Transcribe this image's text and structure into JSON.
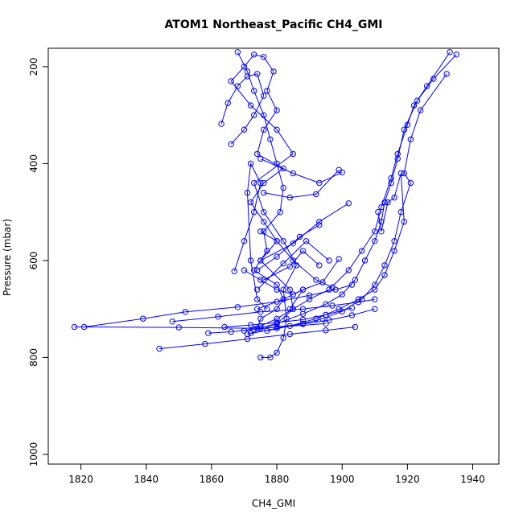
{
  "chart_data": {
    "type": "line",
    "title": "ATOM1 Northeast_Pacific CH4_GMI",
    "xlabel": "CH4_GMI",
    "ylabel": "Pressure (mbar)",
    "xlim": [
      1810,
      1948
    ],
    "ylim": [
      1020,
      162
    ],
    "y_inverted": true,
    "grid": false,
    "series_color": "#0000ff",
    "marker": "open-circle",
    "x_ticks": [
      1820,
      1840,
      1860,
      1880,
      1900,
      1920,
      1940
    ],
    "y_ticks": [
      200,
      400,
      600,
      800,
      1000
    ],
    "series": [
      {
        "x": [
          1868,
          1871,
          1873,
          1876,
          1878,
          1880,
          1882,
          1881,
          1876,
          1877,
          1873,
          1880,
          1882,
          1880,
          1875,
          1874,
          1880,
          1885,
          1884,
          1875,
          1880,
          1876,
          1872,
          1876,
          1882,
          1874,
          1876,
          1880,
          1877,
          1879,
          1876,
          1873,
          1870,
          1866,
          1872,
          1880,
          1885,
          1873,
          1876,
          1882,
          1886,
          1882,
          1883,
          1882,
          1880,
          1878,
          1875
        ],
        "y": [
          170,
          210,
          250,
          300,
          350,
          400,
          450,
          500,
          540,
          580,
          620,
          650,
          680,
          700,
          720,
          740,
          730,
          700,
          660,
          600,
          560,
          520,
          480,
          440,
          410,
          380,
          330,
          290,
          250,
          210,
          180,
          175,
          200,
          230,
          280,
          330,
          380,
          440,
          500,
          560,
          610,
          660,
          720,
          760,
          790,
          800,
          800
        ]
      },
      {
        "x": [
          1933,
          1926,
          1922,
          1920,
          1917,
          1915,
          1912,
          1910,
          1906,
          1902,
          1896,
          1890,
          1885,
          1880,
          1875,
          1870
        ],
        "y": [
          170,
          240,
          280,
          320,
          380,
          430,
          490,
          540,
          580,
          620,
          660,
          680,
          700,
          720,
          735,
          745
        ]
      },
      {
        "x": [
          1935,
          1928,
          1923,
          1919,
          1917,
          1915,
          1913,
          1912,
          1910,
          1907,
          1904,
          1900,
          1895,
          1888,
          1880,
          1872
        ],
        "y": [
          175,
          225,
          270,
          330,
          390,
          440,
          480,
          520,
          560,
          600,
          640,
          670,
          690,
          710,
          730,
          750
        ]
      },
      {
        "x": [
          1932,
          1924,
          1921,
          1919,
          1921,
          1918,
          1916,
          1913,
          1910,
          1906,
          1900,
          1894,
          1888,
          1880,
          1871
        ],
        "y": [
          215,
          290,
          350,
          420,
          440,
          500,
          560,
          610,
          650,
          680,
          705,
          720,
          730,
          740,
          752
        ]
      },
      {
        "x": [
          1911,
          1912,
          1914,
          1916,
          1918,
          1919,
          1916,
          1913,
          1910,
          1905,
          1899,
          1892,
          1884,
          1877
        ],
        "y": [
          500,
          540,
          480,
          470,
          420,
          520,
          580,
          630,
          660,
          680,
          700,
          720,
          735,
          745
        ]
      },
      {
        "x": [
          1818,
          1850,
          1875,
          1895
        ],
        "y": [
          737,
          738,
          740,
          730
        ]
      },
      {
        "x": [
          1821,
          1839,
          1852,
          1868,
          1880,
          1890,
          1898,
          1903
        ],
        "y": [
          737,
          720,
          706,
          696,
          685,
          672,
          660,
          650
        ]
      },
      {
        "x": [
          1848,
          1862,
          1875,
          1888,
          1897,
          1905,
          1910
        ],
        "y": [
          726,
          716,
          706,
          700,
          693,
          686,
          680
        ]
      },
      {
        "x": [
          1844,
          1858,
          1871,
          1884,
          1895,
          1904
        ],
        "y": [
          782,
          772,
          762,
          752,
          744,
          737
        ]
      },
      {
        "x": [
          1859,
          1866,
          1873,
          1880,
          1888,
          1896,
          1903,
          1910
        ],
        "y": [
          750,
          747,
          742,
          737,
          731,
          723,
          713,
          700
        ]
      },
      {
        "x": [
          1864,
          1872,
          1880,
          1888,
          1895,
          1903
        ],
        "y": [
          737,
          733,
          728,
          722,
          712,
          698
        ]
      },
      {
        "x": [
          1875,
          1885,
          1893,
          1900
        ],
        "y": [
          390,
          420,
          440,
          418
        ]
      },
      {
        "x": [
          1876,
          1884,
          1892,
          1899
        ],
        "y": [
          460,
          470,
          463,
          413
        ]
      },
      {
        "x": [
          1875,
          1885,
          1893,
          1902
        ],
        "y": [
          600,
          565,
          520,
          482
        ]
      },
      {
        "x": [
          1874,
          1880,
          1887,
          1893
        ],
        "y": [
          620,
          592,
          551,
          527
        ]
      },
      {
        "x": [
          1874,
          1882,
          1889,
          1896
        ],
        "y": [
          660,
          606,
          560,
          600
        ]
      },
      {
        "x": [
          1876,
          1884,
          1888,
          1893
        ],
        "y": [
          640,
          612,
          580,
          610
        ]
      },
      {
        "x": [
          1874,
          1882,
          1888,
          1894,
          1899
        ],
        "y": [
          700,
          680,
          660,
          645,
          597
        ]
      },
      {
        "x": [
          1875,
          1880,
          1885,
          1892,
          1897
        ],
        "y": [
          540,
          560,
          600,
          640,
          655
        ]
      },
      {
        "x": [
          1870,
          1875,
          1880,
          1885,
          1888,
          1884
        ],
        "y": [
          620,
          640,
          660,
          670,
          660,
          700
        ]
      },
      {
        "x": [
          1867,
          1870,
          1873,
          1875,
          1872,
          1871,
          1872,
          1874,
          1877
        ],
        "y": [
          622,
          560,
          500,
          440,
          400,
          460,
          600,
          680,
          700
        ]
      },
      {
        "x": [
          1863,
          1865,
          1868,
          1871,
          1874,
          1876,
          1873,
          1870,
          1866
        ],
        "y": [
          318,
          275,
          240,
          220,
          215,
          260,
          300,
          330,
          360
        ]
      }
    ]
  }
}
